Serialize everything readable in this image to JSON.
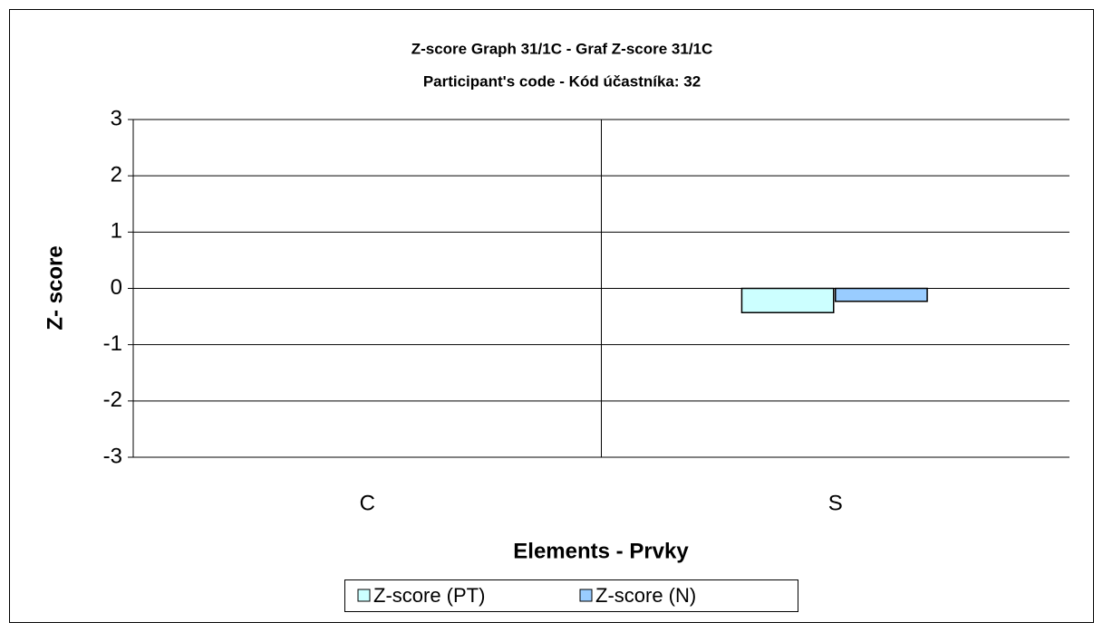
{
  "chart_data": {
    "type": "bar",
    "title": "Z-score Graph 31/1C - Graf Z-score 31/1C",
    "subtitle": "Participant's code - Kód účastníka:  32",
    "y_label": "Z- score",
    "x_label": "Elements - Prvky",
    "categories": [
      "C",
      "S"
    ],
    "series": [
      {
        "name": "Z-score (PT)",
        "color": "#ccffff",
        "values": [
          0,
          -0.43
        ]
      },
      {
        "name": "Z-score (N)",
        "color": "#99ccff",
        "values": [
          0,
          -0.23
        ]
      }
    ],
    "ylim": [
      -3,
      3
    ],
    "yticks": [
      -3,
      -2,
      -1,
      0,
      1,
      2,
      3
    ],
    "grid": true,
    "legend": "bottom"
  }
}
